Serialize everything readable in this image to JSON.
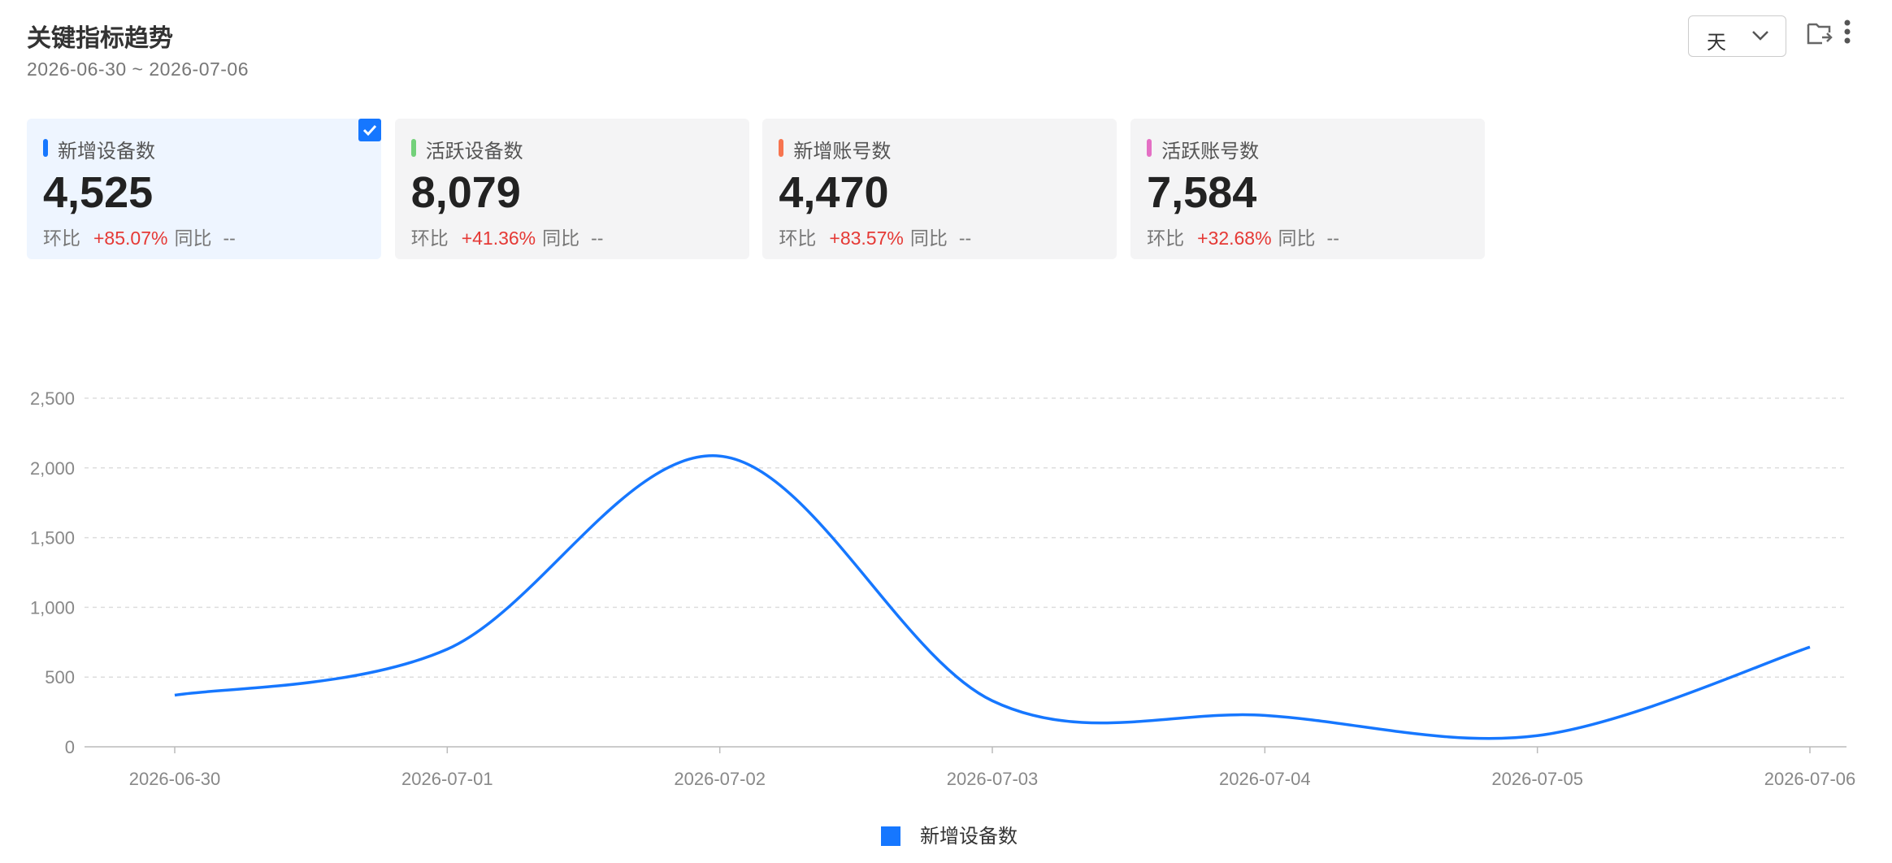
{
  "header": {
    "title": "关键指标趋势",
    "date_range": "2026-06-30 ~ 2026-07-06"
  },
  "controls": {
    "granularity": "天"
  },
  "cards": [
    {
      "label": "新增设备数",
      "color": "#1677ff",
      "value": "4,525",
      "mom_label": "环比",
      "mom": "+85.07%",
      "yoy_label": "同比",
      "yoy": "--",
      "selected": true
    },
    {
      "label": "活跃设备数",
      "color": "#73d17a",
      "value": "8,079",
      "mom_label": "环比",
      "mom": "+41.36%",
      "yoy_label": "同比",
      "yoy": "--",
      "selected": false
    },
    {
      "label": "新增账号数",
      "color": "#f7744f",
      "value": "4,470",
      "mom_label": "环比",
      "mom": "+83.57%",
      "yoy_label": "同比",
      "yoy": "--",
      "selected": false
    },
    {
      "label": "活跃账号数",
      "color": "#e46fc4",
      "value": "7,584",
      "mom_label": "环比",
      "mom": "+32.68%",
      "yoy_label": "同比",
      "yoy": "--",
      "selected": false
    }
  ],
  "chart_data": {
    "type": "line",
    "categories": [
      "2026-06-30",
      "2026-07-01",
      "2026-07-02",
      "2026-07-03",
      "2026-07-04",
      "2026-07-05",
      "2026-07-06"
    ],
    "series": [
      {
        "name": "新增设备数",
        "color": "#1677ff",
        "values": [
          370,
          700,
          2085,
          330,
          225,
          80,
          715
        ]
      }
    ],
    "ylim": [
      0,
      2500
    ],
    "yticks": [
      0,
      500,
      {
        "value": 1000,
        "label": "1,000"
      },
      {
        "value": 1500,
        "label": "1,500"
      },
      {
        "value": 2000,
        "label": "2,000"
      },
      {
        "value": 2500,
        "label": "2,500"
      }
    ],
    "grid": true,
    "smooth": true,
    "legend": "bottom"
  }
}
